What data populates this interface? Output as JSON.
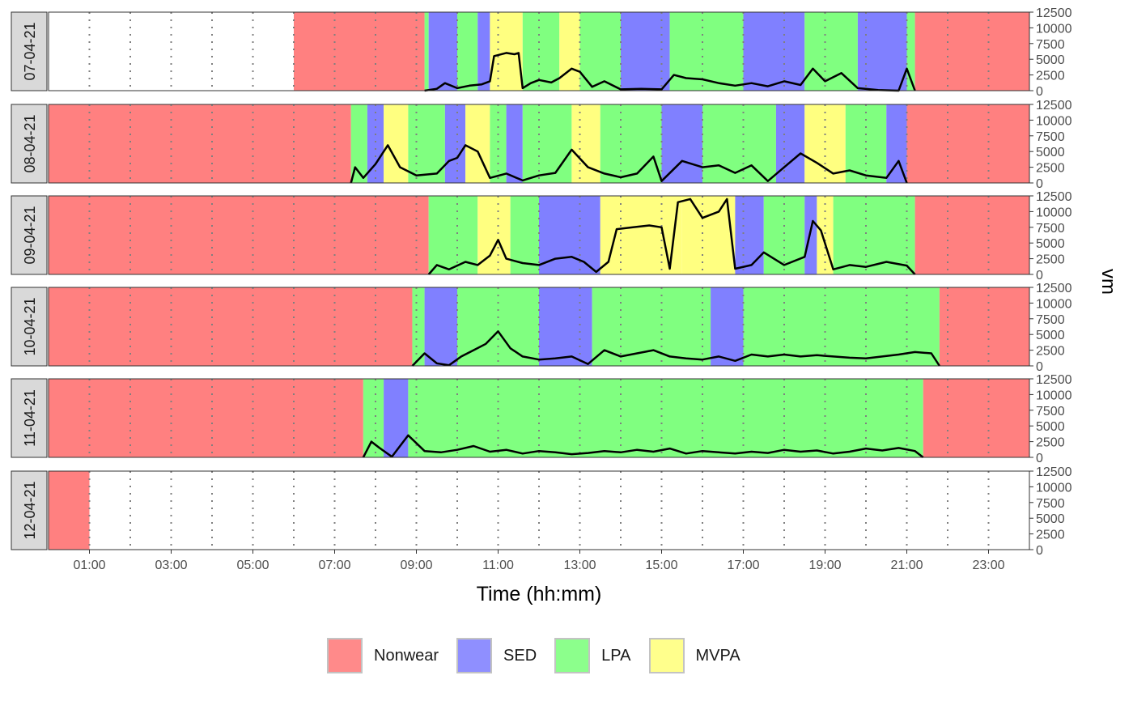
{
  "chart_data": {
    "type": "area",
    "xlabel": "Time (hh:mm)",
    "ylabel": "vm",
    "ylim": [
      0,
      12500
    ],
    "yticks": [
      0,
      2500,
      5000,
      7500,
      10000,
      12500
    ],
    "xlim": [
      0,
      24
    ],
    "xticks": [
      {
        "label": "01:00",
        "value": 1
      },
      {
        "label": "03:00",
        "value": 3
      },
      {
        "label": "05:00",
        "value": 5
      },
      {
        "label": "07:00",
        "value": 7
      },
      {
        "label": "09:00",
        "value": 9
      },
      {
        "label": "11:00",
        "value": 11
      },
      {
        "label": "13:00",
        "value": 13
      },
      {
        "label": "15:00",
        "value": 15
      },
      {
        "label": "17:00",
        "value": 17
      },
      {
        "label": "19:00",
        "value": 19
      },
      {
        "label": "21:00",
        "value": 21
      },
      {
        "label": "23:00",
        "value": 23
      }
    ],
    "gridlines": "dotted vertical every hour",
    "legend_position": "bottom",
    "legend": [
      {
        "name": "Nonwear",
        "color": "#ff8a8a"
      },
      {
        "name": "SED",
        "color": "#8f8fff"
      },
      {
        "name": "LPA",
        "color": "#8cff8c"
      },
      {
        "name": "MVPA",
        "color": "#ffff8c"
      }
    ],
    "category_colors": {
      "Nonwear": "#ff8080",
      "SED": "#8080ff",
      "LPA": "#80ff80",
      "MVPA": "#ffff80"
    },
    "days": [
      {
        "label": "07-04-21",
        "segments": [
          [
            6.0,
            9.2,
            "Nonwear"
          ],
          [
            9.2,
            9.3,
            "LPA"
          ],
          [
            9.3,
            10.0,
            "SED"
          ],
          [
            10.0,
            10.5,
            "LPA"
          ],
          [
            10.5,
            10.8,
            "SED"
          ],
          [
            10.8,
            11.6,
            "MVPA"
          ],
          [
            11.6,
            12.5,
            "LPA"
          ],
          [
            12.5,
            13.0,
            "MVPA"
          ],
          [
            13.0,
            14.0,
            "LPA"
          ],
          [
            14.0,
            15.2,
            "SED"
          ],
          [
            15.2,
            17.0,
            "LPA"
          ],
          [
            17.0,
            18.5,
            "SED"
          ],
          [
            18.5,
            19.8,
            "LPA"
          ],
          [
            19.8,
            21.0,
            "SED"
          ],
          [
            21.0,
            21.2,
            "LPA"
          ],
          [
            21.2,
            24.0,
            "Nonwear"
          ]
        ],
        "vm": [
          [
            9.2,
            0
          ],
          [
            9.5,
            300
          ],
          [
            9.7,
            1200
          ],
          [
            10.0,
            400
          ],
          [
            10.3,
            800
          ],
          [
            10.6,
            1000
          ],
          [
            10.8,
            1500
          ],
          [
            10.9,
            5500
          ],
          [
            11.2,
            6000
          ],
          [
            11.4,
            5800
          ],
          [
            11.5,
            6000
          ],
          [
            11.6,
            400
          ],
          [
            11.8,
            1200
          ],
          [
            12.0,
            1700
          ],
          [
            12.3,
            1300
          ],
          [
            12.5,
            2000
          ],
          [
            12.8,
            3500
          ],
          [
            13.0,
            3000
          ],
          [
            13.3,
            600
          ],
          [
            13.6,
            1500
          ],
          [
            14.0,
            200
          ],
          [
            14.5,
            300
          ],
          [
            15.0,
            200
          ],
          [
            15.3,
            2500
          ],
          [
            15.6,
            2000
          ],
          [
            16.0,
            1800
          ],
          [
            16.4,
            1200
          ],
          [
            16.8,
            800
          ],
          [
            17.2,
            1200
          ],
          [
            17.6,
            700
          ],
          [
            18.0,
            1500
          ],
          [
            18.4,
            900
          ],
          [
            18.7,
            3500
          ],
          [
            19.0,
            1500
          ],
          [
            19.4,
            2800
          ],
          [
            19.8,
            400
          ],
          [
            20.3,
            100
          ],
          [
            20.8,
            0
          ],
          [
            21.0,
            3500
          ],
          [
            21.2,
            0
          ]
        ]
      },
      {
        "label": "08-04-21",
        "segments": [
          [
            0.0,
            7.4,
            "Nonwear"
          ],
          [
            7.4,
            7.8,
            "LPA"
          ],
          [
            7.8,
            8.2,
            "SED"
          ],
          [
            8.2,
            8.8,
            "MVPA"
          ],
          [
            8.8,
            9.7,
            "LPA"
          ],
          [
            9.7,
            10.2,
            "SED"
          ],
          [
            10.2,
            10.8,
            "MVPA"
          ],
          [
            10.8,
            11.2,
            "LPA"
          ],
          [
            11.2,
            11.6,
            "SED"
          ],
          [
            11.6,
            12.8,
            "LPA"
          ],
          [
            12.8,
            13.5,
            "MVPA"
          ],
          [
            13.5,
            15.0,
            "LPA"
          ],
          [
            15.0,
            16.0,
            "SED"
          ],
          [
            16.0,
            17.8,
            "LPA"
          ],
          [
            17.8,
            18.5,
            "SED"
          ],
          [
            18.5,
            19.5,
            "MVPA"
          ],
          [
            19.5,
            20.5,
            "LPA"
          ],
          [
            20.5,
            21.0,
            "SED"
          ],
          [
            21.0,
            24.0,
            "Nonwear"
          ]
        ],
        "vm": [
          [
            7.4,
            0
          ],
          [
            7.5,
            2500
          ],
          [
            7.7,
            800
          ],
          [
            8.0,
            3000
          ],
          [
            8.3,
            6000
          ],
          [
            8.6,
            2500
          ],
          [
            9.0,
            1200
          ],
          [
            9.5,
            1500
          ],
          [
            9.8,
            3500
          ],
          [
            10.0,
            4000
          ],
          [
            10.2,
            6000
          ],
          [
            10.5,
            5000
          ],
          [
            10.8,
            800
          ],
          [
            11.2,
            1500
          ],
          [
            11.6,
            400
          ],
          [
            12.0,
            1200
          ],
          [
            12.4,
            1600
          ],
          [
            12.8,
            5300
          ],
          [
            13.2,
            2500
          ],
          [
            13.6,
            1500
          ],
          [
            14.0,
            900
          ],
          [
            14.4,
            1500
          ],
          [
            14.8,
            4200
          ],
          [
            15.0,
            300
          ],
          [
            15.5,
            3500
          ],
          [
            16.0,
            2500
          ],
          [
            16.4,
            2800
          ],
          [
            16.8,
            1600
          ],
          [
            17.2,
            2800
          ],
          [
            17.6,
            300
          ],
          [
            18.0,
            2500
          ],
          [
            18.4,
            4700
          ],
          [
            18.8,
            3200
          ],
          [
            19.2,
            1500
          ],
          [
            19.6,
            2000
          ],
          [
            20.0,
            1200
          ],
          [
            20.5,
            800
          ],
          [
            20.8,
            3500
          ],
          [
            21.0,
            0
          ]
        ]
      },
      {
        "label": "09-04-21",
        "segments": [
          [
            0.0,
            9.3,
            "Nonwear"
          ],
          [
            9.3,
            10.5,
            "LPA"
          ],
          [
            10.5,
            11.3,
            "MVPA"
          ],
          [
            11.3,
            12.0,
            "LPA"
          ],
          [
            12.0,
            13.5,
            "SED"
          ],
          [
            13.5,
            15.5,
            "MVPA"
          ],
          [
            15.5,
            16.8,
            "MVPA"
          ],
          [
            16.8,
            17.5,
            "SED"
          ],
          [
            17.5,
            18.5,
            "LPA"
          ],
          [
            18.5,
            18.8,
            "SED"
          ],
          [
            18.8,
            19.2,
            "MVPA"
          ],
          [
            19.2,
            21.2,
            "LPA"
          ],
          [
            21.2,
            24.0,
            "Nonwear"
          ]
        ],
        "vm": [
          [
            9.3,
            0
          ],
          [
            9.5,
            1500
          ],
          [
            9.8,
            800
          ],
          [
            10.2,
            2000
          ],
          [
            10.5,
            1500
          ],
          [
            10.8,
            3000
          ],
          [
            11.0,
            5500
          ],
          [
            11.2,
            2500
          ],
          [
            11.6,
            1800
          ],
          [
            12.0,
            1500
          ],
          [
            12.4,
            2500
          ],
          [
            12.8,
            2800
          ],
          [
            13.1,
            2000
          ],
          [
            13.4,
            400
          ],
          [
            13.7,
            2000
          ],
          [
            13.9,
            7200
          ],
          [
            14.3,
            7500
          ],
          [
            14.7,
            7800
          ],
          [
            15.0,
            7500
          ],
          [
            15.2,
            900
          ],
          [
            15.4,
            11500
          ],
          [
            15.7,
            12000
          ],
          [
            16.0,
            9000
          ],
          [
            16.4,
            10000
          ],
          [
            16.6,
            12000
          ],
          [
            16.8,
            900
          ],
          [
            17.2,
            1500
          ],
          [
            17.5,
            3500
          ],
          [
            18.0,
            1500
          ],
          [
            18.5,
            2800
          ],
          [
            18.7,
            8500
          ],
          [
            18.9,
            7000
          ],
          [
            19.2,
            800
          ],
          [
            19.6,
            1500
          ],
          [
            20.0,
            1200
          ],
          [
            20.5,
            2000
          ],
          [
            21.0,
            1400
          ],
          [
            21.2,
            0
          ]
        ]
      },
      {
        "label": "10-04-21",
        "segments": [
          [
            0.0,
            8.9,
            "Nonwear"
          ],
          [
            8.9,
            9.2,
            "LPA"
          ],
          [
            9.2,
            10.0,
            "SED"
          ],
          [
            10.0,
            12.0,
            "LPA"
          ],
          [
            12.0,
            13.3,
            "SED"
          ],
          [
            13.3,
            16.2,
            "LPA"
          ],
          [
            16.2,
            17.0,
            "SED"
          ],
          [
            17.0,
            21.8,
            "LPA"
          ],
          [
            21.8,
            24.0,
            "Nonwear"
          ]
        ],
        "vm": [
          [
            8.9,
            0
          ],
          [
            9.2,
            2000
          ],
          [
            9.5,
            400
          ],
          [
            9.8,
            100
          ],
          [
            10.1,
            1500
          ],
          [
            10.4,
            2500
          ],
          [
            10.7,
            3500
          ],
          [
            11.0,
            5500
          ],
          [
            11.3,
            2800
          ],
          [
            11.6,
            1500
          ],
          [
            12.0,
            1000
          ],
          [
            12.4,
            1200
          ],
          [
            12.8,
            1500
          ],
          [
            13.2,
            300
          ],
          [
            13.6,
            2500
          ],
          [
            14.0,
            1500
          ],
          [
            14.4,
            2000
          ],
          [
            14.8,
            2500
          ],
          [
            15.2,
            1500
          ],
          [
            15.6,
            1200
          ],
          [
            16.0,
            1000
          ],
          [
            16.4,
            1500
          ],
          [
            16.8,
            800
          ],
          [
            17.2,
            1800
          ],
          [
            17.6,
            1500
          ],
          [
            18.0,
            1800
          ],
          [
            18.4,
            1500
          ],
          [
            18.8,
            1700
          ],
          [
            19.2,
            1500
          ],
          [
            19.6,
            1300
          ],
          [
            20.0,
            1200
          ],
          [
            20.4,
            1500
          ],
          [
            20.8,
            1800
          ],
          [
            21.2,
            2200
          ],
          [
            21.6,
            2000
          ],
          [
            21.8,
            0
          ]
        ]
      },
      {
        "label": "11-04-21",
        "segments": [
          [
            0.0,
            7.7,
            "Nonwear"
          ],
          [
            7.7,
            8.2,
            "LPA"
          ],
          [
            8.2,
            8.8,
            "SED"
          ],
          [
            8.8,
            21.4,
            "LPA"
          ],
          [
            21.4,
            24.0,
            "Nonwear"
          ]
        ],
        "vm": [
          [
            7.7,
            0
          ],
          [
            7.9,
            2500
          ],
          [
            8.1,
            1500
          ],
          [
            8.4,
            100
          ],
          [
            8.8,
            3500
          ],
          [
            9.2,
            1000
          ],
          [
            9.6,
            800
          ],
          [
            10.0,
            1200
          ],
          [
            10.4,
            1800
          ],
          [
            10.8,
            900
          ],
          [
            11.2,
            1200
          ],
          [
            11.6,
            600
          ],
          [
            12.0,
            1000
          ],
          [
            12.4,
            800
          ],
          [
            12.8,
            500
          ],
          [
            13.2,
            700
          ],
          [
            13.6,
            1000
          ],
          [
            14.0,
            800
          ],
          [
            14.4,
            1200
          ],
          [
            14.8,
            900
          ],
          [
            15.2,
            1400
          ],
          [
            15.6,
            600
          ],
          [
            16.0,
            1000
          ],
          [
            16.4,
            800
          ],
          [
            16.8,
            600
          ],
          [
            17.2,
            900
          ],
          [
            17.6,
            700
          ],
          [
            18.0,
            1200
          ],
          [
            18.4,
            900
          ],
          [
            18.8,
            1100
          ],
          [
            19.2,
            600
          ],
          [
            19.6,
            900
          ],
          [
            20.0,
            1400
          ],
          [
            20.4,
            1100
          ],
          [
            20.8,
            1500
          ],
          [
            21.2,
            1000
          ],
          [
            21.4,
            0
          ]
        ]
      },
      {
        "label": "12-04-21",
        "segments": [
          [
            0.0,
            1.0,
            "Nonwear"
          ]
        ],
        "vm": []
      }
    ]
  }
}
